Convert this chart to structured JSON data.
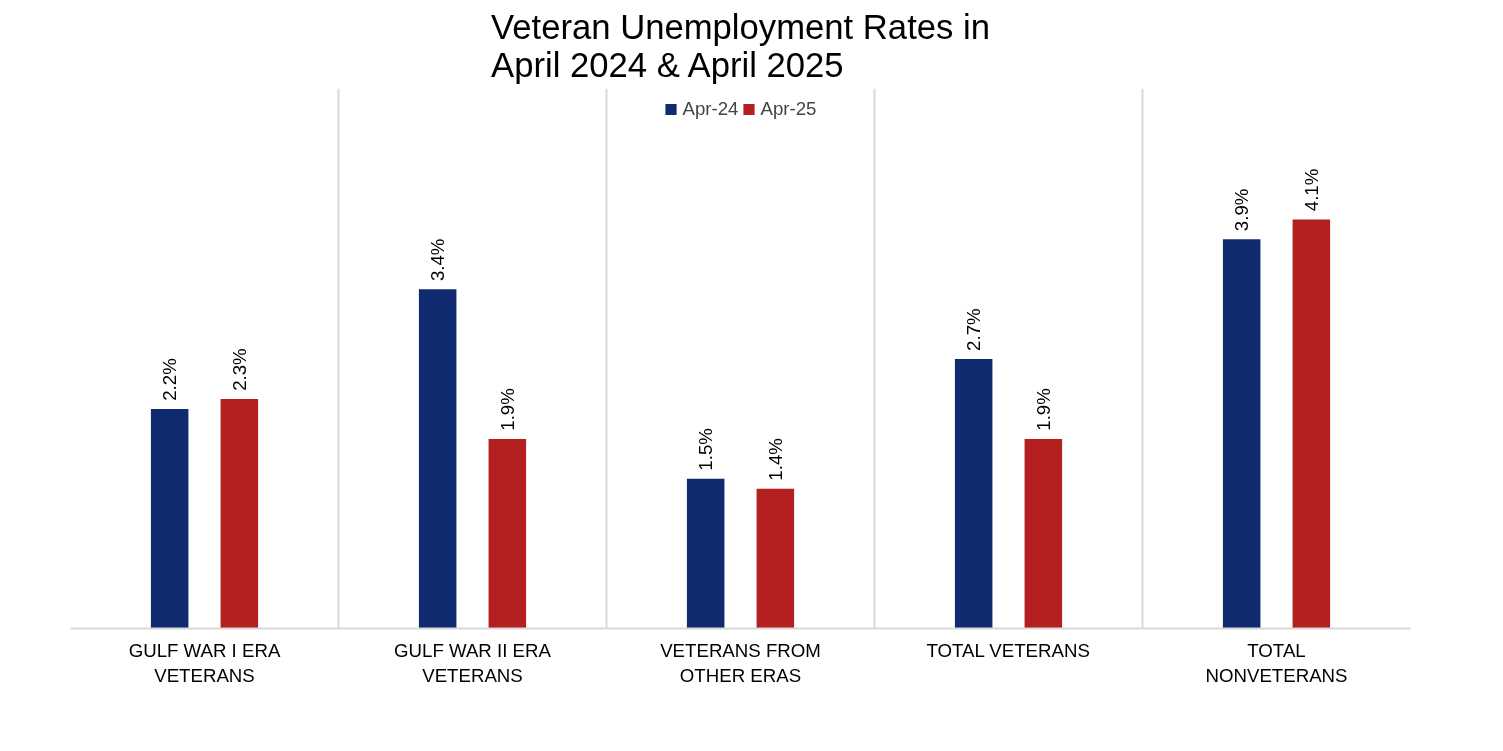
{
  "chart_data": {
    "type": "bar",
    "title": "Veteran Unemployment Rates in April 2024 & April 2025",
    "categories": [
      "GULF WAR I ERA VETERANS",
      "GULF WAR II ERA VETERANS",
      "VETERANS FROM OTHER ERAS",
      "TOTAL VETERANS",
      "TOTAL NONVETERANS"
    ],
    "series": [
      {
        "name": "Apr-24",
        "color": "#0f2a6e",
        "values": [
          2.2,
          3.4,
          1.5,
          2.7,
          3.9
        ],
        "value_labels": [
          "2.2%",
          "3.4%",
          "1.5%",
          "2.7%",
          "3.9%"
        ]
      },
      {
        "name": "Apr-25",
        "color": "#b41f1f",
        "values": [
          2.3,
          1.9,
          1.4,
          1.9,
          4.1
        ],
        "value_labels": [
          "2.3%",
          "1.9%",
          "1.4%",
          "1.9%",
          "4.1%"
        ]
      }
    ],
    "grid": "x",
    "legend": "top"
  }
}
